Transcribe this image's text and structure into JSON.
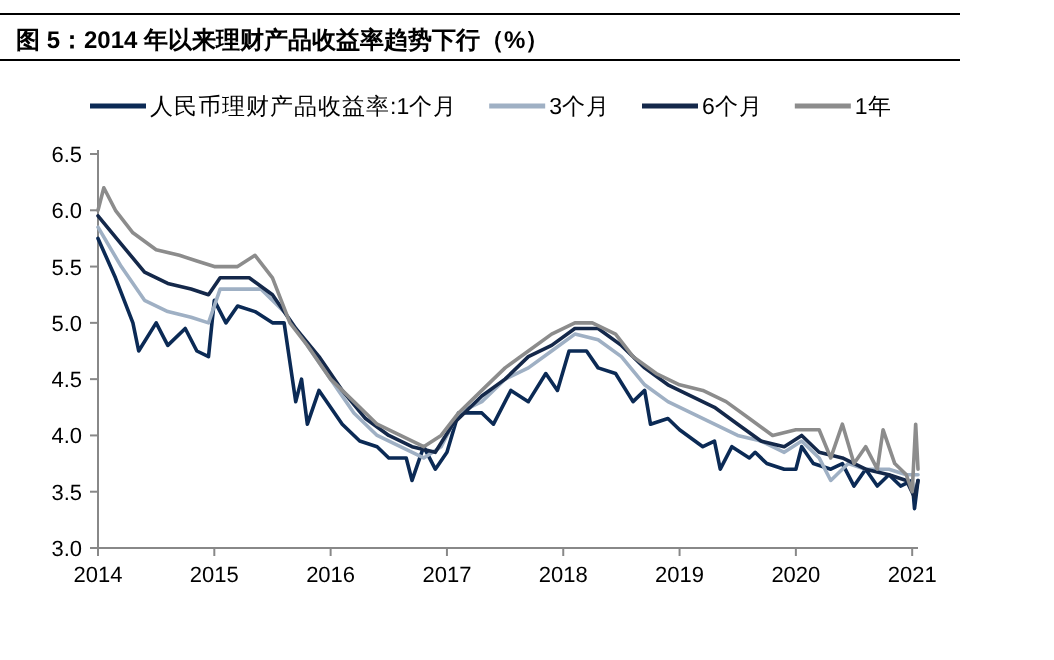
{
  "chart_data": {
    "type": "line",
    "title": "图 5：2014 年以来理财产品收益率趋势下行（%）",
    "xlim": [
      2014,
      2021.05
    ],
    "xticks": [
      2014,
      2015,
      2016,
      2017,
      2018,
      2019,
      2020,
      2021
    ],
    "ylim": [
      3.0,
      6.5
    ],
    "yticks": [
      {
        "value": 3.0,
        "label": "3.0"
      },
      {
        "value": 3.5,
        "label": "3.5"
      },
      {
        "value": 4.0,
        "label": "4.0"
      },
      {
        "value": 4.5,
        "label": "4.5"
      },
      {
        "value": 5.0,
        "label": "5.0"
      },
      {
        "value": 5.5,
        "label": "5.5"
      },
      {
        "value": 6.0,
        "label": "6.0"
      },
      {
        "value": 6.5,
        "label": "6.5"
      }
    ],
    "grid": false,
    "legend": "top",
    "line_style": "solid",
    "marker": "none",
    "series": [
      {
        "name": "人民币理财产品收益率:1个月",
        "color": "#0b2a55",
        "x": [
          2014.0,
          2014.15,
          2014.3,
          2014.35,
          2014.5,
          2014.6,
          2014.75,
          2014.85,
          2014.95,
          2015.0,
          2015.1,
          2015.2,
          2015.35,
          2015.5,
          2015.6,
          2015.7,
          2015.75,
          2015.8,
          2015.9,
          2016.1,
          2016.25,
          2016.4,
          2016.5,
          2016.65,
          2016.7,
          2016.8,
          2016.9,
          2017.0,
          2017.1,
          2017.3,
          2017.4,
          2017.55,
          2017.7,
          2017.85,
          2017.95,
          2018.05,
          2018.2,
          2018.3,
          2018.45,
          2018.6,
          2018.7,
          2018.75,
          2018.9,
          2019.0,
          2019.2,
          2019.3,
          2019.35,
          2019.45,
          2019.6,
          2019.65,
          2019.75,
          2019.9,
          2020.0,
          2020.05,
          2020.15,
          2020.3,
          2020.4,
          2020.5,
          2020.6,
          2020.7,
          2020.8,
          2020.9,
          2021.0,
          2021.02,
          2021.05
        ],
        "values": [
          5.75,
          5.4,
          5.0,
          4.75,
          5.0,
          4.8,
          4.95,
          4.75,
          4.7,
          5.2,
          5.0,
          5.15,
          5.1,
          5.0,
          5.0,
          4.3,
          4.5,
          4.1,
          4.4,
          4.1,
          3.95,
          3.9,
          3.8,
          3.8,
          3.6,
          3.9,
          3.7,
          3.85,
          4.2,
          4.2,
          4.1,
          4.4,
          4.3,
          4.55,
          4.4,
          4.75,
          4.75,
          4.6,
          4.55,
          4.3,
          4.4,
          4.1,
          4.15,
          4.05,
          3.9,
          3.95,
          3.7,
          3.9,
          3.8,
          3.85,
          3.75,
          3.7,
          3.7,
          3.9,
          3.75,
          3.7,
          3.75,
          3.55,
          3.7,
          3.55,
          3.65,
          3.55,
          3.6,
          3.35,
          3.6
        ]
      },
      {
        "name": "3个月",
        "color": "#9fb0c4",
        "x": [
          2014.0,
          2014.2,
          2014.4,
          2014.6,
          2014.8,
          2014.95,
          2015.05,
          2015.2,
          2015.4,
          2015.6,
          2015.8,
          2016.0,
          2016.2,
          2016.4,
          2016.6,
          2016.8,
          2016.95,
          2017.1,
          2017.3,
          2017.5,
          2017.7,
          2017.9,
          2018.1,
          2018.3,
          2018.5,
          2018.7,
          2018.9,
          2019.1,
          2019.3,
          2019.5,
          2019.7,
          2019.9,
          2020.05,
          2020.2,
          2020.3,
          2020.45,
          2020.6,
          2020.8,
          2020.95,
          2021.05
        ],
        "values": [
          5.85,
          5.5,
          5.2,
          5.1,
          5.05,
          5.0,
          5.3,
          5.3,
          5.3,
          5.1,
          4.8,
          4.5,
          4.2,
          4.0,
          3.9,
          3.8,
          3.9,
          4.2,
          4.3,
          4.5,
          4.6,
          4.75,
          4.9,
          4.85,
          4.7,
          4.45,
          4.3,
          4.2,
          4.1,
          4.0,
          3.95,
          3.85,
          3.95,
          3.8,
          3.6,
          3.75,
          3.7,
          3.7,
          3.65,
          3.65
        ]
      },
      {
        "name": "6个月",
        "color": "#14284a",
        "x": [
          2014.0,
          2014.2,
          2014.4,
          2014.6,
          2014.8,
          2014.95,
          2015.05,
          2015.3,
          2015.5,
          2015.7,
          2015.9,
          2016.1,
          2016.3,
          2016.5,
          2016.7,
          2016.9,
          2017.05,
          2017.3,
          2017.5,
          2017.7,
          2017.9,
          2018.1,
          2018.3,
          2018.5,
          2018.7,
          2018.9,
          2019.1,
          2019.3,
          2019.5,
          2019.7,
          2019.9,
          2020.05,
          2020.2,
          2020.4,
          2020.6,
          2020.8,
          2020.95,
          2021.02,
          2021.05
        ],
        "values": [
          5.95,
          5.7,
          5.45,
          5.35,
          5.3,
          5.25,
          5.4,
          5.4,
          5.25,
          4.95,
          4.7,
          4.4,
          4.15,
          4.0,
          3.9,
          3.85,
          4.1,
          4.35,
          4.5,
          4.7,
          4.8,
          4.95,
          4.95,
          4.8,
          4.6,
          4.45,
          4.35,
          4.25,
          4.1,
          3.95,
          3.9,
          4.0,
          3.85,
          3.8,
          3.7,
          3.65,
          3.6,
          3.45,
          3.6
        ]
      },
      {
        "name": "1年",
        "color": "#8c8c8c",
        "x": [
          2014.0,
          2014.05,
          2014.15,
          2014.3,
          2014.5,
          2014.7,
          2014.85,
          2015.0,
          2015.2,
          2015.35,
          2015.5,
          2015.65,
          2015.8,
          2016.0,
          2016.2,
          2016.4,
          2016.6,
          2016.8,
          2016.95,
          2017.1,
          2017.3,
          2017.5,
          2017.7,
          2017.9,
          2018.1,
          2018.25,
          2018.45,
          2018.6,
          2018.8,
          2019.0,
          2019.2,
          2019.4,
          2019.6,
          2019.8,
          2020.0,
          2020.2,
          2020.3,
          2020.4,
          2020.5,
          2020.6,
          2020.7,
          2020.75,
          2020.85,
          2020.95,
          2021.0,
          2021.03,
          2021.05
        ],
        "values": [
          6.0,
          6.2,
          6.0,
          5.8,
          5.65,
          5.6,
          5.55,
          5.5,
          5.5,
          5.6,
          5.4,
          5.0,
          4.8,
          4.5,
          4.3,
          4.1,
          4.0,
          3.9,
          4.0,
          4.2,
          4.4,
          4.6,
          4.75,
          4.9,
          5.0,
          5.0,
          4.9,
          4.7,
          4.55,
          4.45,
          4.4,
          4.3,
          4.15,
          4.0,
          4.05,
          4.05,
          3.8,
          4.1,
          3.75,
          3.9,
          3.7,
          4.05,
          3.75,
          3.65,
          3.5,
          4.1,
          3.7
        ]
      }
    ]
  }
}
